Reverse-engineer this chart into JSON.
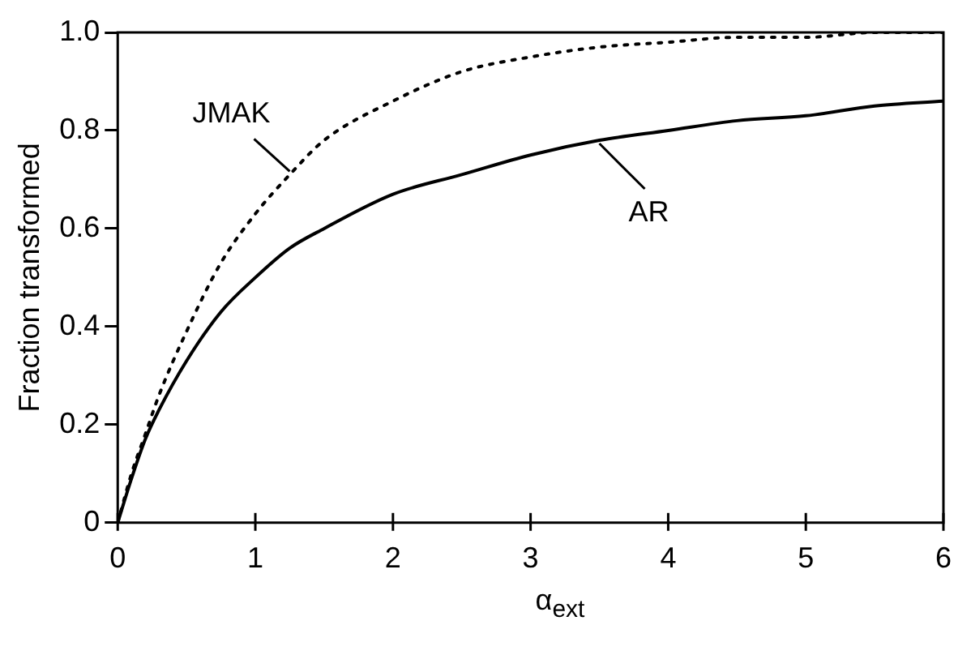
{
  "chart_data": {
    "type": "line",
    "xlabel": "α$_{ext}$",
    "ylabel": "Fraction transformed",
    "xlim": [
      0,
      6
    ],
    "xticks": [
      0,
      1,
      2,
      3,
      4,
      5,
      6
    ],
    "ylim": [
      0,
      1
    ],
    "yticks": [
      0,
      0.2,
      0.4,
      0.6,
      0.8,
      {
        "value": 1,
        "label": "1.0"
      }
    ],
    "grid": false,
    "marker": "none",
    "series": [
      {
        "name": "JMAK",
        "color": "#000000",
        "line_style": "dotted",
        "x": [
          0,
          0.1,
          0.2,
          0.3,
          0.5,
          0.75,
          1,
          1.25,
          1.5,
          2,
          2.5,
          3,
          3.5,
          4,
          4.5,
          5,
          5.5,
          6
        ],
        "values": [
          0,
          0.1,
          0.18,
          0.26,
          0.39,
          0.53,
          0.63,
          0.71,
          0.78,
          0.86,
          0.92,
          0.95,
          0.97,
          0.98,
          0.99,
          0.99,
          1.0,
          1.0
        ]
      },
      {
        "name": "AR",
        "color": "#000000",
        "line_style": "solid",
        "x": [
          0,
          0.1,
          0.2,
          0.3,
          0.5,
          0.75,
          1,
          1.25,
          1.5,
          2,
          2.5,
          3,
          3.5,
          4,
          4.5,
          5,
          5.5,
          6
        ],
        "values": [
          0,
          0.09,
          0.17,
          0.23,
          0.33,
          0.43,
          0.5,
          0.56,
          0.6,
          0.67,
          0.71,
          0.75,
          0.78,
          0.8,
          0.82,
          0.83,
          0.85,
          0.86
        ]
      }
    ]
  }
}
